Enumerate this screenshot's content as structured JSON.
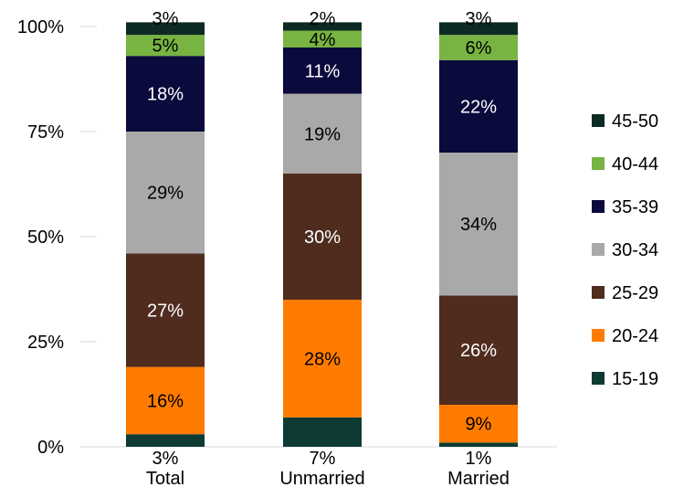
{
  "chart_data": {
    "type": "bar",
    "stacked": true,
    "percent_stacked": true,
    "categories": [
      "Total",
      "Unmarried",
      "Married"
    ],
    "y_ticks": [
      "0%",
      "25%",
      "50%",
      "75%",
      "100%"
    ],
    "ylim": [
      0,
      100
    ],
    "grid": false,
    "legend_position": "right",
    "series": [
      {
        "name": "15-19",
        "color": "#0d3b33",
        "values": [
          3,
          7,
          1
        ],
        "labels": [
          "3%",
          "7%",
          "1%"
        ],
        "label_position": "below"
      },
      {
        "name": "20-24",
        "color": "#ff7b00",
        "values": [
          16,
          28,
          9
        ],
        "labels": [
          "16%",
          "28%",
          "9%"
        ]
      },
      {
        "name": "25-29",
        "color": "#4f2c1e",
        "values": [
          27,
          30,
          26
        ],
        "labels": [
          "27%",
          "30%",
          "26%"
        ]
      },
      {
        "name": "30-34",
        "color": "#a9a9a9",
        "values": [
          29,
          19,
          34
        ],
        "labels": [
          "29%",
          "19%",
          "34%"
        ]
      },
      {
        "name": "35-39",
        "color": "#0a0a3c",
        "values": [
          18,
          11,
          22
        ],
        "labels": [
          "18%",
          "11%",
          "22%"
        ]
      },
      {
        "name": "40-44",
        "color": "#78b441",
        "values": [
          5,
          4,
          6
        ],
        "labels": [
          "5%",
          "4%",
          "6%"
        ]
      },
      {
        "name": "45-50",
        "color": "#0d2a24",
        "values": [
          3,
          2,
          3
        ],
        "labels": [
          "3%",
          "2%",
          "3%"
        ],
        "label_position": "above"
      }
    ]
  }
}
